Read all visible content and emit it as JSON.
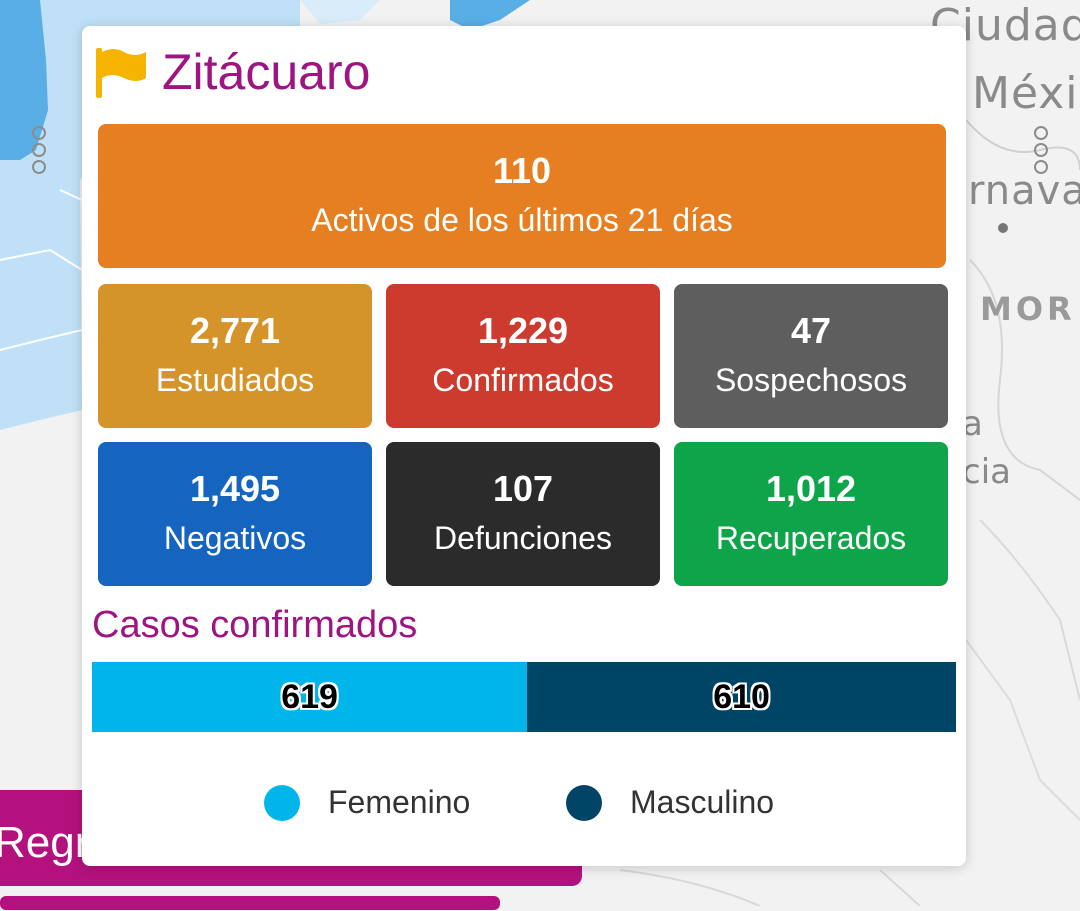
{
  "map": {
    "labels": {
      "ciudad": "Ciudad",
      "mexico": "Méxi",
      "cuernavaca": "rnava",
      "morelos": "MOR",
      "a": "a",
      "cia": "cia"
    },
    "water_color": "#5aaee6",
    "land_color": "#f2f2f2"
  },
  "back_button": {
    "label": "Regre",
    "color": "#b3127e"
  },
  "popup": {
    "icon": "flag-icon",
    "title": "Zitácuaro",
    "title_color": "#9c1582",
    "activos": {
      "value": "110",
      "label": "Activos de los últimos 21 días",
      "color": "#e67e22"
    },
    "stats": [
      {
        "value": "2,771",
        "label": "Estudiados",
        "color": "#d4942a"
      },
      {
        "value": "1,229",
        "label": "Confirmados",
        "color": "#cc3b2e"
      },
      {
        "value": "47",
        "label": "Sospechosos",
        "color": "#5e5e5e"
      },
      {
        "value": "1,495",
        "label": "Negativos",
        "color": "#1565c0"
      },
      {
        "value": "107",
        "label": "Defunciones",
        "color": "#2b2b2b"
      },
      {
        "value": "1,012",
        "label": "Recuperados",
        "color": "#0ea54a"
      }
    ],
    "casos": {
      "title": "Casos confirmados",
      "segments": [
        {
          "value": 619,
          "label": "619",
          "name": "Femenino",
          "color": "#00b5ea"
        },
        {
          "value": 610,
          "label": "610",
          "name": "Masculino",
          "color": "#004466"
        }
      ],
      "legend": [
        {
          "label": "Femenino",
          "color": "#00b5ea"
        },
        {
          "label": "Masculino",
          "color": "#004466"
        }
      ]
    }
  }
}
